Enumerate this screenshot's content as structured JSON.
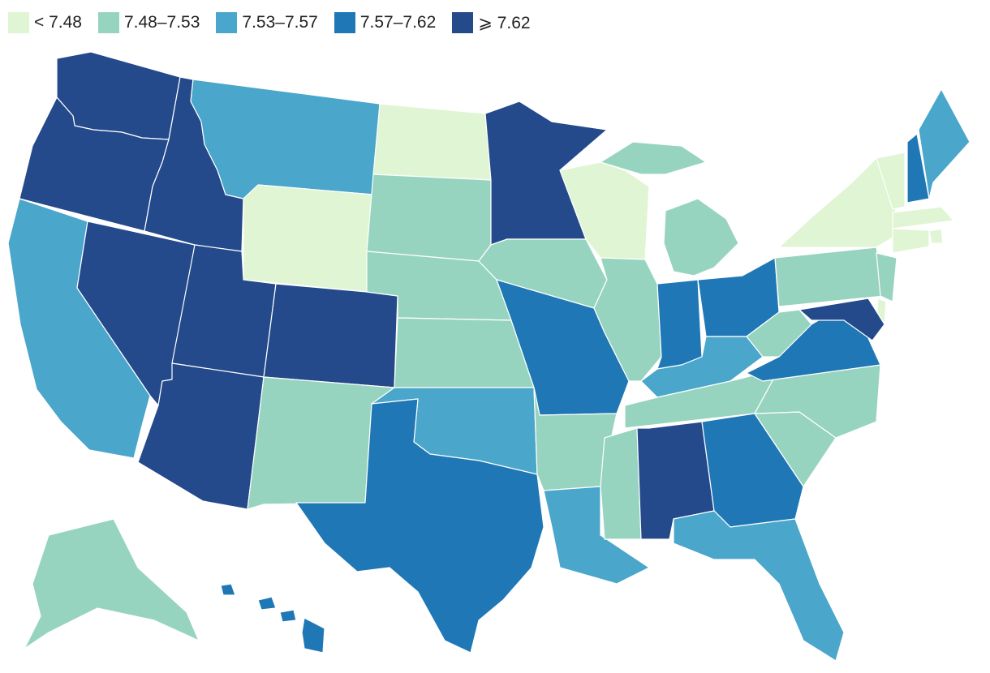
{
  "legend": [
    {
      "label": "< 7.48",
      "color": "#e0f5d3"
    },
    {
      "label": "7.48–7.53",
      "color": "#97d4bf"
    },
    {
      "label": "7.53–7.57",
      "color": "#4aa6ca"
    },
    {
      "label": "7.57–7.62",
      "color": "#1f78b5"
    },
    {
      "label": "⩾ 7.62",
      "color": "#244a8b"
    }
  ],
  "states": [
    {
      "name": "WA",
      "bin": 4
    },
    {
      "name": "OR",
      "bin": 4
    },
    {
      "name": "CA",
      "bin": 2
    },
    {
      "name": "NV",
      "bin": 4
    },
    {
      "name": "ID",
      "bin": 4
    },
    {
      "name": "MT",
      "bin": 2
    },
    {
      "name": "WY",
      "bin": 0
    },
    {
      "name": "UT",
      "bin": 4
    },
    {
      "name": "CO",
      "bin": 4
    },
    {
      "name": "AZ",
      "bin": 4
    },
    {
      "name": "NM",
      "bin": 1
    },
    {
      "name": "ND",
      "bin": 0
    },
    {
      "name": "SD",
      "bin": 1
    },
    {
      "name": "NE",
      "bin": 1
    },
    {
      "name": "KS",
      "bin": 1
    },
    {
      "name": "OK",
      "bin": 2
    },
    {
      "name": "TX",
      "bin": 3
    },
    {
      "name": "MN",
      "bin": 4
    },
    {
      "name": "IA",
      "bin": 1
    },
    {
      "name": "MO",
      "bin": 3
    },
    {
      "name": "AR",
      "bin": 1
    },
    {
      "name": "LA",
      "bin": 2
    },
    {
      "name": "WI",
      "bin": 0
    },
    {
      "name": "IL",
      "bin": 1
    },
    {
      "name": "MI",
      "bin": 1
    },
    {
      "name": "IN",
      "bin": 3
    },
    {
      "name": "OH",
      "bin": 3
    },
    {
      "name": "KY",
      "bin": 2
    },
    {
      "name": "TN",
      "bin": 1
    },
    {
      "name": "MS",
      "bin": 1
    },
    {
      "name": "AL",
      "bin": 4
    },
    {
      "name": "GA",
      "bin": 3
    },
    {
      "name": "FL",
      "bin": 2
    },
    {
      "name": "SC",
      "bin": 1
    },
    {
      "name": "NC",
      "bin": 1
    },
    {
      "name": "VA",
      "bin": 3
    },
    {
      "name": "WV",
      "bin": 1
    },
    {
      "name": "PA",
      "bin": 1
    },
    {
      "name": "NY",
      "bin": 0
    },
    {
      "name": "VT",
      "bin": 0
    },
    {
      "name": "NH",
      "bin": 3
    },
    {
      "name": "ME",
      "bin": 2
    },
    {
      "name": "MA",
      "bin": 0
    },
    {
      "name": "RI",
      "bin": 0
    },
    {
      "name": "CT",
      "bin": 0
    },
    {
      "name": "NJ",
      "bin": 1
    },
    {
      "name": "DE",
      "bin": 0
    },
    {
      "name": "MD",
      "bin": 4
    },
    {
      "name": "AK",
      "bin": 1
    },
    {
      "name": "HI",
      "bin": 3
    }
  ]
}
